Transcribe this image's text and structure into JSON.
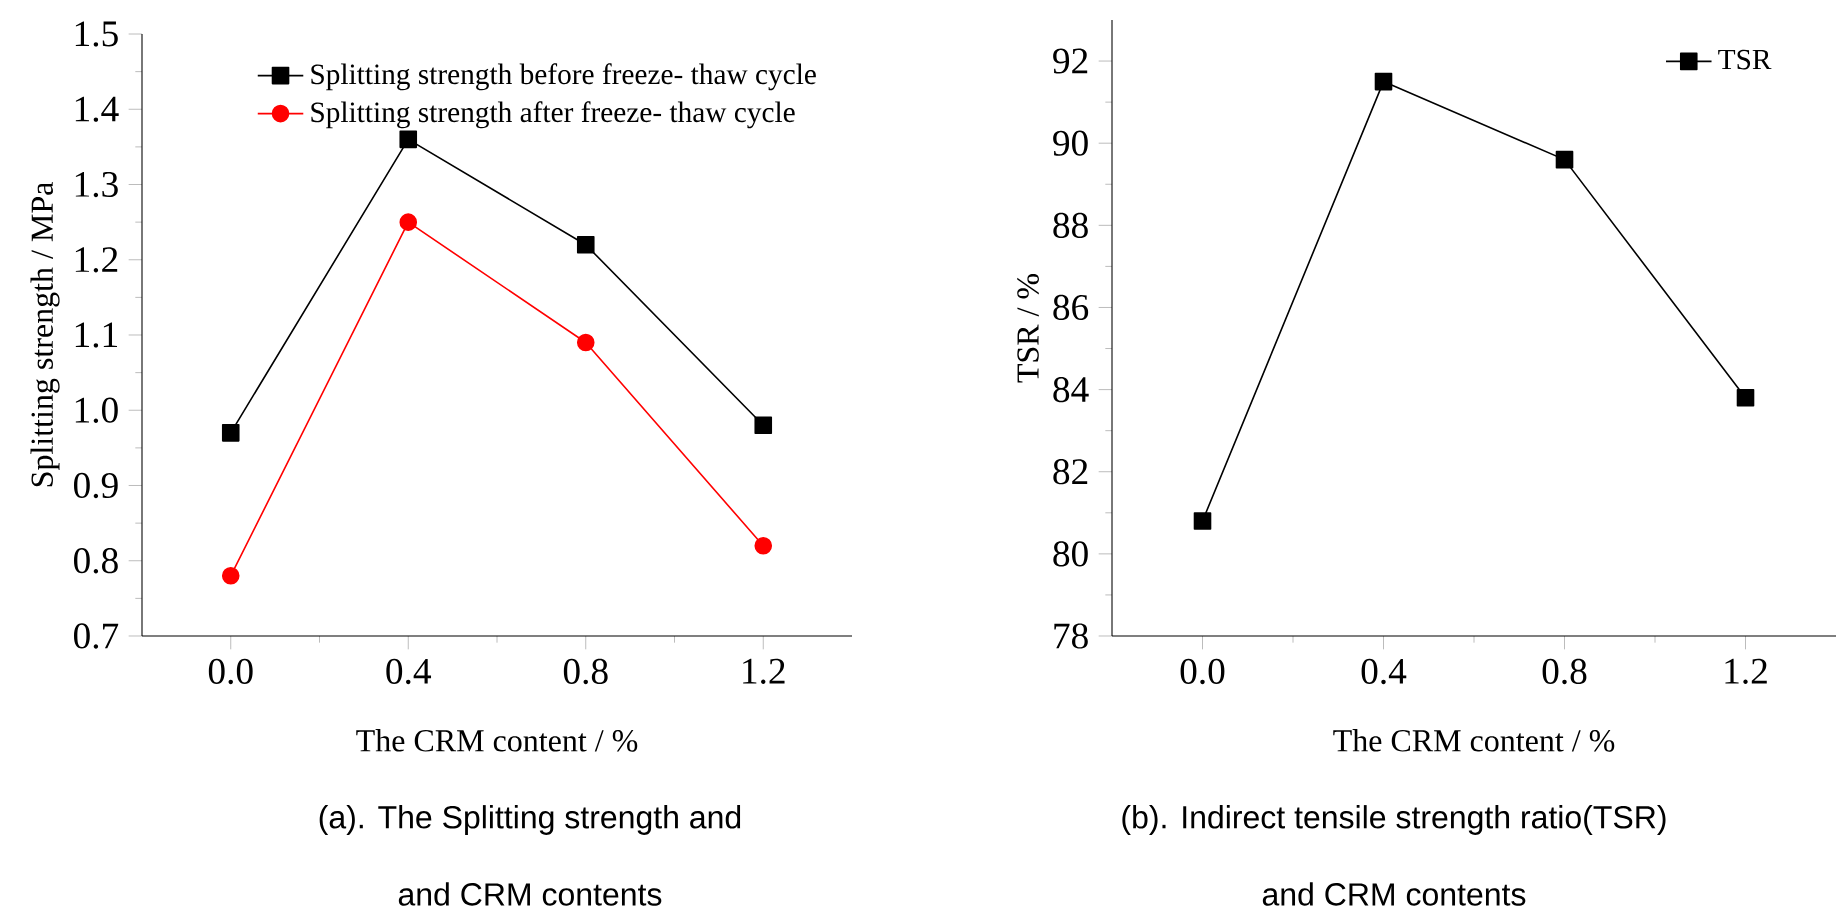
{
  "chart_data": [
    {
      "type": "line",
      "xlabel": "The CRM content / %",
      "ylabel": "Splitting strength  / MPa",
      "x": [
        0,
        0.4,
        0.8,
        1.2
      ],
      "series": [
        {
          "name": "Splitting strength before freeze- thaw cycle",
          "color": "#000000",
          "marker": "square",
          "values": [
            0.97,
            1.36,
            1.22,
            0.98
          ]
        },
        {
          "name": "Splitting strength after freeze- thaw cycle",
          "color": "#ff0000",
          "marker": "circle",
          "values": [
            0.78,
            1.25,
            1.09,
            0.82
          ]
        }
      ],
      "xlim": [
        -0.2,
        1.4
      ],
      "xticks": [
        {
          "value": 0,
          "label": "0.0"
        },
        0.4,
        0.8,
        1.2
      ],
      "ylim": [
        0.7,
        1.5
      ],
      "yticks": [
        0.7,
        0.8,
        0.9,
        {
          "value": 1,
          "label": "1.0"
        },
        1.1,
        1.2,
        1.3,
        1.4,
        1.5
      ],
      "legend": "top right",
      "grid": false,
      "line_style": "solid",
      "annotations": [
        "(a). The Splitting strength and",
        "and CRM contents"
      ]
    },
    {
      "type": "line",
      "xlabel": "The CRM content / %",
      "ylabel": "TSR / %",
      "x": [
        0,
        0.4,
        0.8,
        1.2
      ],
      "series": [
        {
          "name": "TSR",
          "color": "#000000",
          "marker": "square",
          "values": [
            80.8,
            91.5,
            89.6,
            83.8
          ]
        }
      ],
      "xlim": [
        -0.2,
        1.4
      ],
      "xticks": [
        {
          "value": 0,
          "label": "0.0"
        },
        0.4,
        0.8,
        1.2
      ],
      "ylim": [
        78,
        93
      ],
      "yticks": [
        78,
        80,
        82,
        84,
        86,
        88,
        90,
        92
      ],
      "legend": "top right",
      "grid": false,
      "line_style": "solid",
      "annotations": [
        "(b). Indirect tensile strength ratio(TSR)",
        "and CRM contents"
      ]
    }
  ]
}
